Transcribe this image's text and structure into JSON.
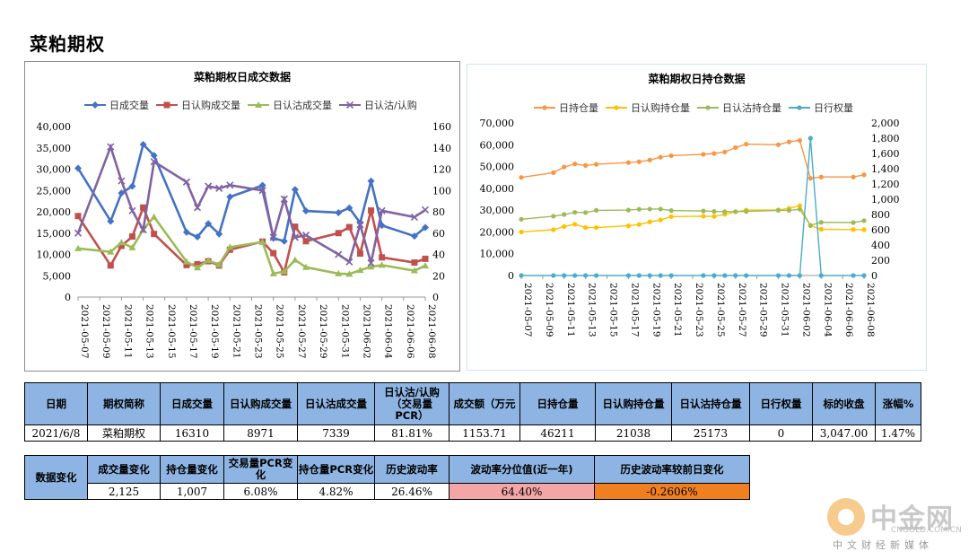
{
  "page": {
    "title": "菜粕期权"
  },
  "chart_data": [
    {
      "type": "line",
      "title": "菜粕期权日成交数据",
      "dual_axis": true,
      "x": [
        "2021-05-07",
        "2021-05-10",
        "2021-05-11",
        "2021-05-12",
        "2021-05-13",
        "2021-05-14",
        "2021-05-17",
        "2021-05-18",
        "2021-05-19",
        "2021-05-20",
        "2021-05-21",
        "2021-05-24",
        "2021-05-25",
        "2021-05-26",
        "2021-05-27",
        "2021-05-28",
        "2021-05-31",
        "2021-06-01",
        "2021-06-02",
        "2021-06-03",
        "2021-06-04",
        "2021-06-07",
        "2021-06-08"
      ],
      "tick_labels": [
        "2021-05-07",
        "2021-05-09",
        "2021-05-11",
        "2021-05-13",
        "2021-05-15",
        "2021-05-17",
        "2021-05-19",
        "2021-05-21",
        "2021-05-23",
        "2021-05-25",
        "2021-05-27",
        "2021-05-29",
        "2021-05-31",
        "2021-06-02",
        "2021-06-04",
        "2021-06-06",
        "2021-06-08"
      ],
      "y_left": {
        "range": [
          0,
          40000
        ],
        "ticks": [
          "0",
          "5,000",
          "10,000",
          "15,000",
          "20,000",
          "25,000",
          "30,000",
          "35,000",
          "40,000"
        ]
      },
      "y_right": {
        "range": [
          0,
          160
        ],
        "ticks": [
          "0",
          "20",
          "40",
          "60",
          "80",
          "100",
          "120",
          "140",
          "160"
        ]
      },
      "series": [
        {
          "name": "日成交量",
          "color": "#4472c4",
          "marker": "diamond",
          "axis": "left",
          "values": [
            30200,
            17800,
            24400,
            26000,
            35800,
            33200,
            15200,
            14100,
            17200,
            14800,
            23500,
            26200,
            13800,
            13100,
            25200,
            20200,
            19800,
            20900,
            17400,
            27200,
            16800,
            14300,
            16310
          ]
        },
        {
          "name": "日认购成交量",
          "color": "#c0504d",
          "marker": "square",
          "axis": "left",
          "values": [
            19000,
            7400,
            12000,
            14200,
            21000,
            14800,
            7500,
            7700,
            8400,
            7400,
            11100,
            13000,
            10300,
            5800,
            16500,
            13100,
            15000,
            16400,
            10200,
            20300,
            9300,
            8100,
            8971
          ]
        },
        {
          "name": "日认沽成交量",
          "color": "#9bbb59",
          "marker": "triangle",
          "axis": "left",
          "values": [
            11400,
            10600,
            12800,
            11600,
            15800,
            18800,
            8300,
            6900,
            8600,
            7600,
            11700,
            12900,
            5500,
            6000,
            8700,
            7000,
            5500,
            5400,
            6300,
            7100,
            7500,
            6200,
            7339
          ]
        },
        {
          "name": "日认沽/认购",
          "color": "#8064a2",
          "marker": "x",
          "axis": "right",
          "values": [
            60,
            141,
            109,
            81,
            63,
            127,
            108,
            84,
            104,
            102,
            105,
            100,
            56,
            92,
            56,
            58,
            40,
            33,
            68,
            32,
            81,
            75,
            81.81
          ]
        }
      ]
    },
    {
      "type": "line",
      "title": "菜粕期权日持仓数据",
      "dual_axis": true,
      "x": [
        "2021-05-07",
        "2021-05-10",
        "2021-05-11",
        "2021-05-12",
        "2021-05-13",
        "2021-05-14",
        "2021-05-17",
        "2021-05-18",
        "2021-05-19",
        "2021-05-20",
        "2021-05-21",
        "2021-05-24",
        "2021-05-25",
        "2021-05-26",
        "2021-05-27",
        "2021-05-28",
        "2021-05-31",
        "2021-06-01",
        "2021-06-02",
        "2021-06-03",
        "2021-06-04",
        "2021-06-07",
        "2021-06-08"
      ],
      "tick_labels": [
        "2021-05-07",
        "2021-05-09",
        "2021-05-11",
        "2021-05-13",
        "2021-05-15",
        "2021-05-17",
        "2021-05-19",
        "2021-05-21",
        "2021-05-23",
        "2021-05-25",
        "2021-05-27",
        "2021-05-29",
        "2021-05-31",
        "2021-06-02",
        "2021-06-04",
        "2021-06-06",
        "2021-06-08"
      ],
      "y_left": {
        "range": [
          0,
          70000
        ],
        "ticks": [
          "0",
          "10,000",
          "20,000",
          "30,000",
          "40,000",
          "50,000",
          "60,000",
          "70,000"
        ]
      },
      "y_right": {
        "range": [
          0,
          2000
        ],
        "ticks": [
          "0",
          "200",
          "400",
          "600",
          "800",
          "1,000",
          "1,200",
          "1,400",
          "1,600",
          "1,800",
          "2,000"
        ]
      },
      "series": [
        {
          "name": "日持仓量",
          "color": "#f79646",
          "marker": "circle",
          "axis": "left",
          "values": [
            45000,
            47200,
            49800,
            51200,
            50500,
            51000,
            51800,
            52200,
            53000,
            54300,
            55000,
            55600,
            56000,
            56700,
            58700,
            60300,
            60000,
            61300,
            62000,
            44600,
            45200,
            45200,
            46211
          ]
        },
        {
          "name": "日认购持仓量",
          "color": "#ffc000",
          "marker": "circle",
          "axis": "left",
          "values": [
            20000,
            21000,
            22500,
            23500,
            22000,
            22000,
            22800,
            23400,
            24600,
            25500,
            27000,
            27200,
            27100,
            28100,
            29200,
            30000,
            30100,
            30800,
            32000,
            22800,
            21200,
            21100,
            21038
          ]
        },
        {
          "name": "日认沽持仓量",
          "color": "#9bbb59",
          "marker": "circle",
          "axis": "left",
          "values": [
            25800,
            27200,
            28000,
            29000,
            28900,
            29900,
            30000,
            30400,
            30500,
            30500,
            29800,
            29600,
            29400,
            29300,
            29300,
            29400,
            29900,
            29900,
            30400,
            23000,
            24400,
            24300,
            25173
          ]
        },
        {
          "name": "日行权量",
          "color": "#4bacc6",
          "marker": "circle",
          "axis": "right",
          "values": [
            0,
            0,
            0,
            0,
            0,
            0,
            0,
            0,
            0,
            0,
            0,
            0,
            0,
            0,
            0,
            0,
            0,
            0,
            0,
            1800,
            0,
            0,
            0
          ]
        }
      ]
    }
  ],
  "table1": {
    "headers": [
      "日期",
      "期权简称",
      "日成交量",
      "日认购成交量",
      "日认沽成交量",
      "日认沽/认购（交易量PCR）",
      "成交额（万元）",
      "日持仓量",
      "日认购持仓量",
      "日认沽持仓量",
      "日行权量",
      "标的收盘",
      "涨幅%"
    ],
    "header_display": [
      "日期",
      "期权简称",
      "日成交量",
      "日认购成交量",
      "日认沽成交量",
      "日认沽/认购\n（交易量\nPCR）",
      "成交额（万元",
      "日持仓量",
      "日认购持仓量",
      "日认沽持仓量",
      "日行权量",
      "标的收盘",
      "涨幅%"
    ],
    "row": [
      "2021/6/8",
      "菜粕期权",
      "16310",
      "8971",
      "7339",
      "81.81%",
      "1153.71",
      "46211",
      "21038",
      "25173",
      "0",
      "3,047.00",
      "1.47%"
    ]
  },
  "table2": {
    "row_label": "数据变化",
    "headers": [
      "成交量变化",
      "持仓量变化",
      "交易量PCR变化",
      "持仓量PCR变化",
      "历史波动率",
      "波动率分位值(近一年)",
      "历史波动率较前日变化"
    ],
    "values": [
      "2,125",
      "1,007",
      "6.08%",
      "4.82%",
      "26.46%",
      "64.40%",
      "-0.2606%"
    ],
    "colors": {
      "percentile": "#f4a6a6",
      "change": "#f07f20"
    }
  },
  "logo": {
    "name": "中金网",
    "url": "CNGOLD.COM.CN",
    "slogan": "中文财经新媒体"
  }
}
